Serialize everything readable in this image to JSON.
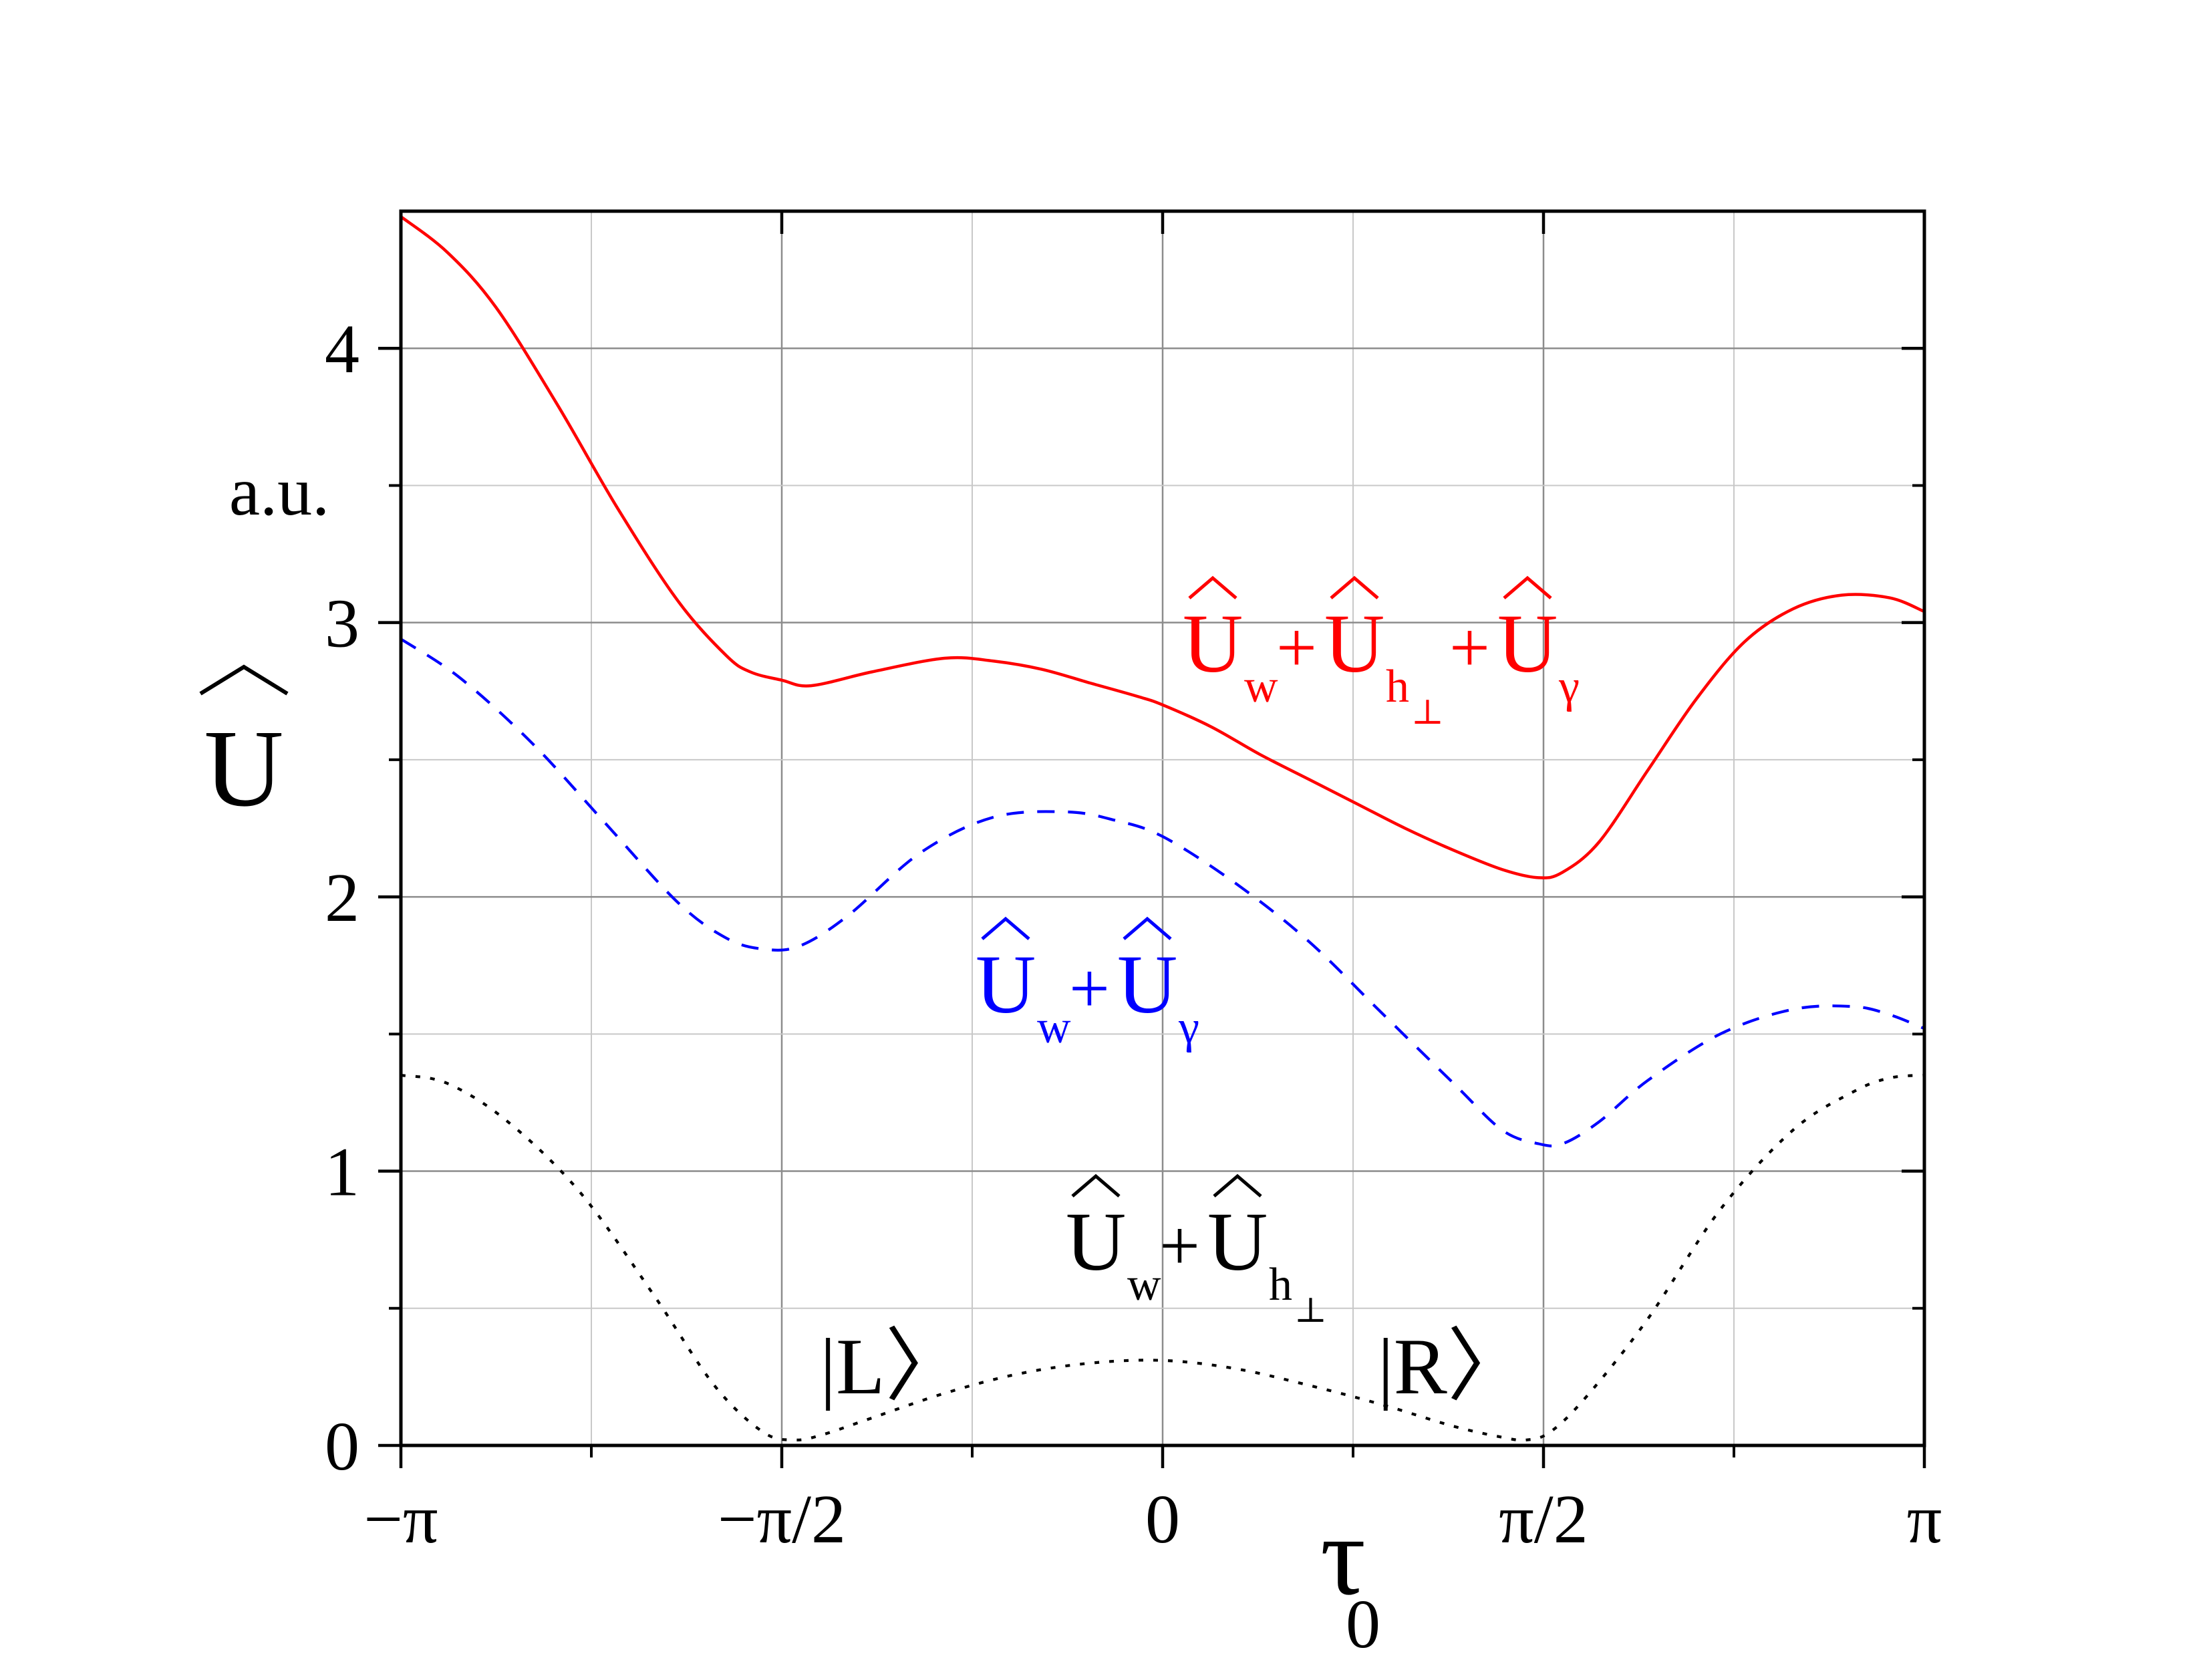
{
  "chart_data": {
    "type": "line",
    "title": "",
    "xlabel": {
      "main": "τ",
      "sub": "0"
    },
    "ylabel": {
      "symbol": "U",
      "hat": "^",
      "unit": "a.u."
    },
    "xlim": [
      -3.14159,
      3.14159
    ],
    "ylim": [
      0,
      4.5
    ],
    "grid": true,
    "x_ticks": [
      {
        "value": -3.14159,
        "label": "−π"
      },
      {
        "value": -1.5708,
        "label": "−π/2"
      },
      {
        "value": 0,
        "label": "0"
      },
      {
        "value": 1.5708,
        "label": "π/2"
      },
      {
        "value": 3.14159,
        "label": "π"
      }
    ],
    "y_ticks": [
      {
        "value": 0,
        "label": "0"
      },
      {
        "value": 1,
        "label": "1"
      },
      {
        "value": 2,
        "label": "2"
      },
      {
        "value": 3,
        "label": "3"
      },
      {
        "value": 4,
        "label": "4"
      }
    ],
    "series": [
      {
        "key": "total",
        "color": "#ff0000",
        "style": "solid",
        "label": {
          "parts": [
            {
              "base": "U",
              "sub": "w"
            },
            {
              "base": "U",
              "sub": "h",
              "subsub": "⊥"
            },
            {
              "base": "U",
              "sub": "γ"
            }
          ],
          "plus": "+"
        },
        "x": [
          -3.14159,
          -2.95,
          -2.75,
          -2.5,
          -2.25,
          -2.0,
          -1.8,
          -1.7,
          -1.57,
          -1.45,
          -1.2,
          -0.9,
          -0.7,
          -0.5,
          -0.3,
          -0.1,
          0.0,
          0.2,
          0.4,
          0.6,
          0.8,
          1.0,
          1.2,
          1.4,
          1.55,
          1.65,
          1.8,
          2.0,
          2.2,
          2.4,
          2.6,
          2.8,
          3.0,
          3.14159
        ],
        "y": [
          4.48,
          4.35,
          4.15,
          3.8,
          3.42,
          3.08,
          2.88,
          2.82,
          2.79,
          2.77,
          2.82,
          2.87,
          2.86,
          2.83,
          2.78,
          2.73,
          2.7,
          2.62,
          2.52,
          2.43,
          2.34,
          2.25,
          2.17,
          2.1,
          2.07,
          2.09,
          2.2,
          2.46,
          2.72,
          2.93,
          3.05,
          3.1,
          3.09,
          3.04
        ]
      },
      {
        "key": "wgamma",
        "color": "#0000ff",
        "style": "dashed",
        "label": {
          "parts": [
            {
              "base": "U",
              "sub": "w"
            },
            {
              "base": "U",
              "sub": "γ"
            }
          ],
          "plus": "+"
        },
        "x": [
          -3.14159,
          -2.9,
          -2.6,
          -2.3,
          -2.0,
          -1.8,
          -1.65,
          -1.5,
          -1.3,
          -1.0,
          -0.7,
          -0.4,
          -0.2,
          0.0,
          0.3,
          0.6,
          0.9,
          1.2,
          1.4,
          1.55,
          1.65,
          1.8,
          2.0,
          2.3,
          2.6,
          2.85,
          3.0,
          3.14159
        ],
        "y": [
          2.94,
          2.8,
          2.56,
          2.27,
          1.98,
          1.85,
          1.81,
          1.82,
          1.93,
          2.16,
          2.29,
          2.31,
          2.28,
          2.22,
          2.05,
          1.84,
          1.58,
          1.32,
          1.15,
          1.1,
          1.1,
          1.18,
          1.33,
          1.5,
          1.59,
          1.6,
          1.57,
          1.52
        ]
      },
      {
        "key": "wh",
        "color": "#000000",
        "style": "dotted",
        "label": {
          "parts": [
            {
              "base": "U",
              "sub": "w"
            },
            {
              "base": "U",
              "sub": "h",
              "subsub": "⊥"
            }
          ],
          "plus": "+"
        },
        "x": [
          -3.14159,
          -2.95,
          -2.7,
          -2.4,
          -2.1,
          -1.85,
          -1.65,
          -1.52,
          -1.4,
          -1.2,
          -0.9,
          -0.6,
          -0.3,
          0.0,
          0.3,
          0.6,
          0.9,
          1.2,
          1.4,
          1.5,
          1.6,
          1.75,
          2.0,
          2.3,
          2.6,
          2.85,
          3.0,
          3.14159
        ],
        "y": [
          1.35,
          1.32,
          1.18,
          0.92,
          0.55,
          0.22,
          0.05,
          0.02,
          0.04,
          0.1,
          0.19,
          0.26,
          0.3,
          0.31,
          0.28,
          0.22,
          0.15,
          0.07,
          0.03,
          0.02,
          0.05,
          0.18,
          0.46,
          0.86,
          1.15,
          1.29,
          1.34,
          1.35
        ]
      }
    ],
    "annotations": [
      {
        "text": "|L〉",
        "x": -1.0,
        "y": 0.19
      },
      {
        "text": "|R〉",
        "x": 1.3,
        "y": 0.19
      }
    ]
  }
}
